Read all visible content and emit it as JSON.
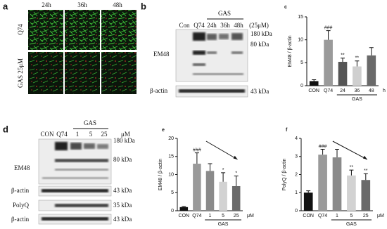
{
  "chart_data": [
    {
      "type": "bar",
      "panel_label": "c",
      "y_label": "EM48 / β-actin",
      "categories": [
        "CON",
        "Q74",
        "24",
        "36",
        "48"
      ],
      "values": [
        1,
        10,
        5.2,
        4.2,
        6.6
      ],
      "errors": [
        0.3,
        2,
        0.8,
        1.2,
        1.7
      ],
      "colors": [
        "#111111",
        "#9a9a9a",
        "#555555",
        "#cfcfcf",
        "#6a6a6a"
      ],
      "annotations": [
        null,
        "###",
        "**",
        "**",
        null
      ],
      "group_label": "GAS",
      "x_unit": "h",
      "ylim": [
        0,
        15
      ],
      "yticks": [
        0,
        5,
        10,
        15
      ]
    },
    {
      "type": "bar",
      "panel_label": "e",
      "y_label": "EM48 / β-actin",
      "categories": [
        "CON",
        "Q74",
        "1",
        "5",
        "25"
      ],
      "values": [
        1,
        13,
        11,
        8,
        6.8
      ],
      "errors": [
        0.2,
        3,
        2,
        2.5,
        2.8
      ],
      "colors": [
        "#111111",
        "#9a9a9a",
        "#8a8a8a",
        "#d2d2d2",
        "#6a6a6a"
      ],
      "annotations": [
        null,
        "###",
        null,
        "*",
        "*"
      ],
      "group_label": "GAS",
      "x_unit": "μM",
      "ylim": [
        0,
        20
      ],
      "yticks": [
        0,
        5,
        10,
        15,
        20
      ]
    },
    {
      "type": "bar",
      "panel_label": "f",
      "y_label": "PolyQ / β-actin",
      "categories": [
        "CON",
        "Q74",
        "1",
        "5",
        "25"
      ],
      "values": [
        1,
        3.1,
        2.95,
        1.95,
        1.7
      ],
      "errors": [
        0.1,
        0.3,
        0.45,
        0.3,
        0.35
      ],
      "colors": [
        "#111111",
        "#9a9a9a",
        "#8a8a8a",
        "#d2d2d2",
        "#6a6a6a"
      ],
      "annotations": [
        null,
        "###",
        null,
        "**",
        "**"
      ],
      "group_label": "GAS",
      "x_unit": "μM",
      "ylim": [
        0,
        4
      ],
      "yticks": [
        0,
        1,
        2,
        3,
        4
      ]
    }
  ],
  "figure": {
    "panel_a": {
      "label": "a",
      "columns": [
        "24h",
        "36h",
        "48h"
      ],
      "rows": [
        "Q74",
        "GAS 25μM"
      ]
    },
    "panel_b": {
      "label": "b",
      "lanes": [
        "Con",
        "Q74",
        "24h",
        "36h",
        "48h"
      ],
      "group": "GAS",
      "dose": "(25μM)",
      "markers": [
        "180 kDa",
        "80 kDa",
        "43 kDa"
      ],
      "proteins": [
        "EM48",
        "β-actin"
      ]
    },
    "panel_d": {
      "label": "d",
      "lanes": [
        "CON",
        "Q74",
        "1",
        "5",
        "25"
      ],
      "group": "GAS",
      "unit": "μM",
      "markers": [
        "180 kDa",
        "80 kDa",
        "43 kDa",
        "35 kDa",
        "43 kDa"
      ],
      "proteins": [
        "EM48",
        "β-actin",
        "PolyQ",
        "β-actin"
      ]
    }
  }
}
